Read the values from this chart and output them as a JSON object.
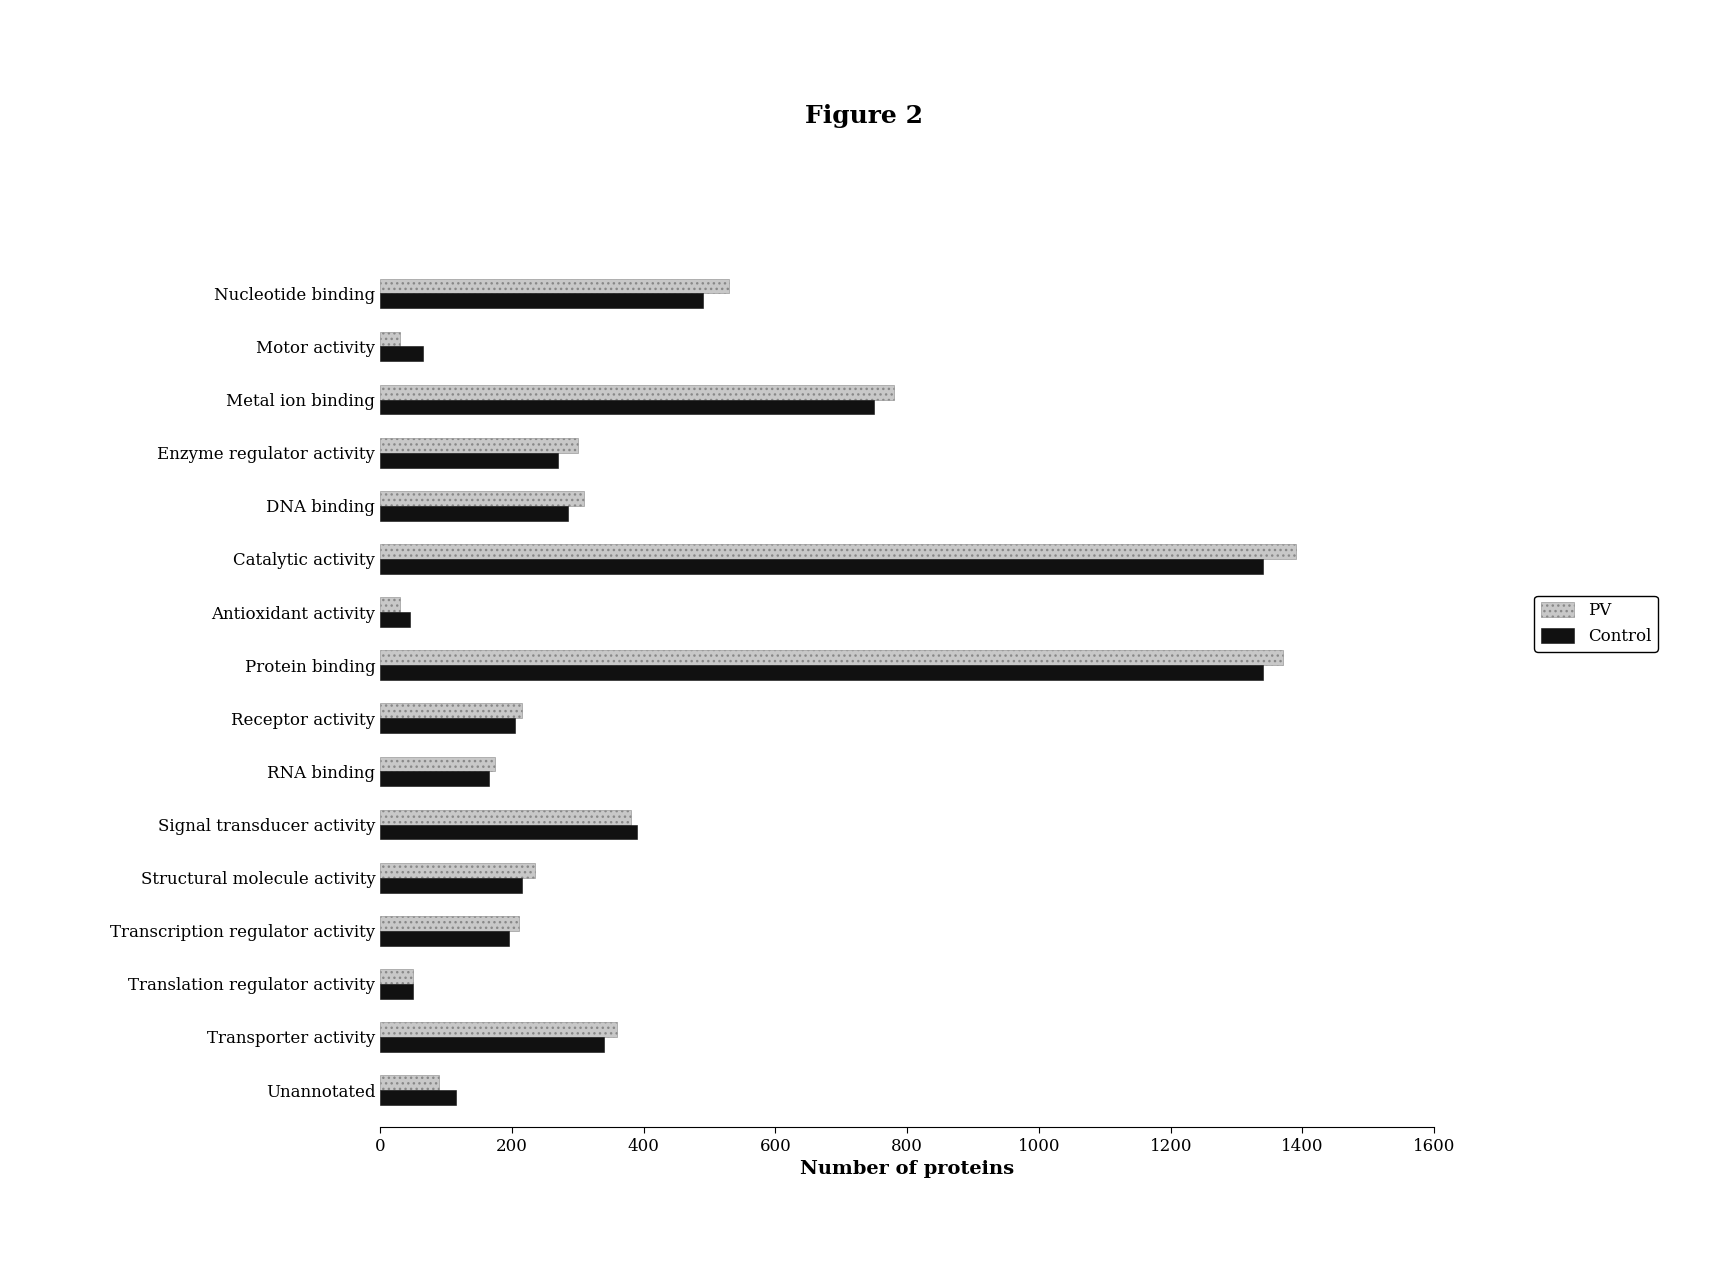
{
  "title": "Figure 2",
  "xlabel": "Number of proteins",
  "xlim": [
    0,
    1600
  ],
  "xticks": [
    0,
    200,
    400,
    600,
    800,
    1000,
    1200,
    1400,
    1600
  ],
  "categories": [
    "Nucleotide binding",
    "Motor activity",
    "Metal ion binding",
    "Enzyme regulator activity",
    "DNA binding",
    "Catalytic activity",
    "Antioxidant activity",
    "Protein binding",
    "Receptor activity",
    "RNA binding",
    "Signal transducer activity",
    "Structural molecule activity",
    "Transcription regulator activity",
    "Translation regulator activity",
    "Transporter activity",
    "Unannotated"
  ],
  "pv_values": [
    530,
    30,
    780,
    300,
    310,
    1390,
    30,
    1370,
    215,
    175,
    380,
    235,
    210,
    50,
    360,
    90
  ],
  "control_values": [
    490,
    65,
    750,
    270,
    285,
    1340,
    45,
    1340,
    205,
    165,
    390,
    215,
    195,
    50,
    340,
    115
  ],
  "pv_color": "#c8c8c8",
  "control_color": "#111111",
  "background_color": "#ffffff",
  "legend_labels": [
    "PV",
    "Control"
  ],
  "bar_height": 0.28,
  "title_fontsize": 18,
  "label_fontsize": 12,
  "tick_fontsize": 12,
  "legend_fontsize": 12
}
